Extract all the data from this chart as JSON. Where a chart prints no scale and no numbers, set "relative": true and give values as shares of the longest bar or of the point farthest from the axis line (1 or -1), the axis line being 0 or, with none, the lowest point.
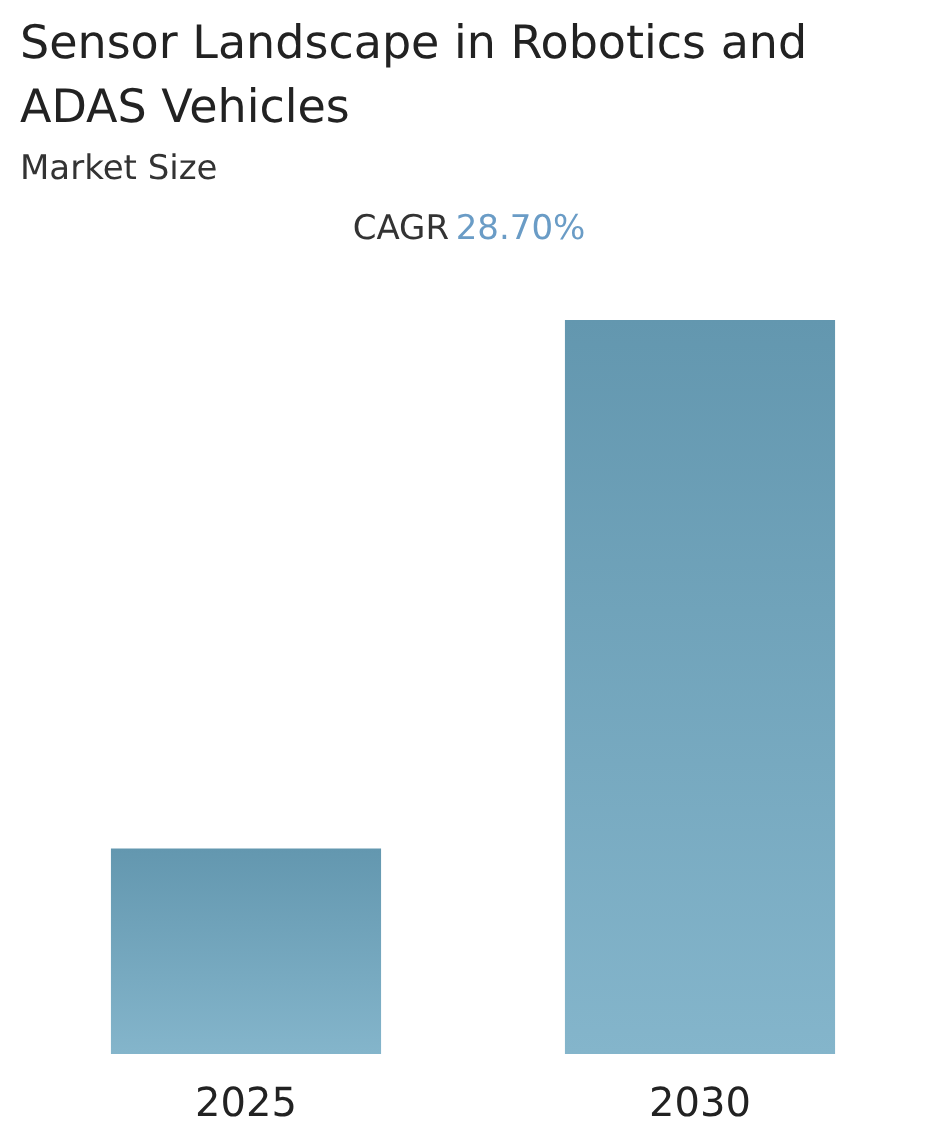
{
  "chart_data": {
    "type": "bar",
    "title": "Sensor Landscape in Robotics and ADAS Vehicles",
    "subtitle": "Market Size",
    "annotations": [
      "CAGR 28.70%"
    ],
    "categories": [
      "2025",
      "2030"
    ],
    "values": [
      0.28,
      1
    ],
    "color": "#6ea8c2",
    "relative": true
  }
}
